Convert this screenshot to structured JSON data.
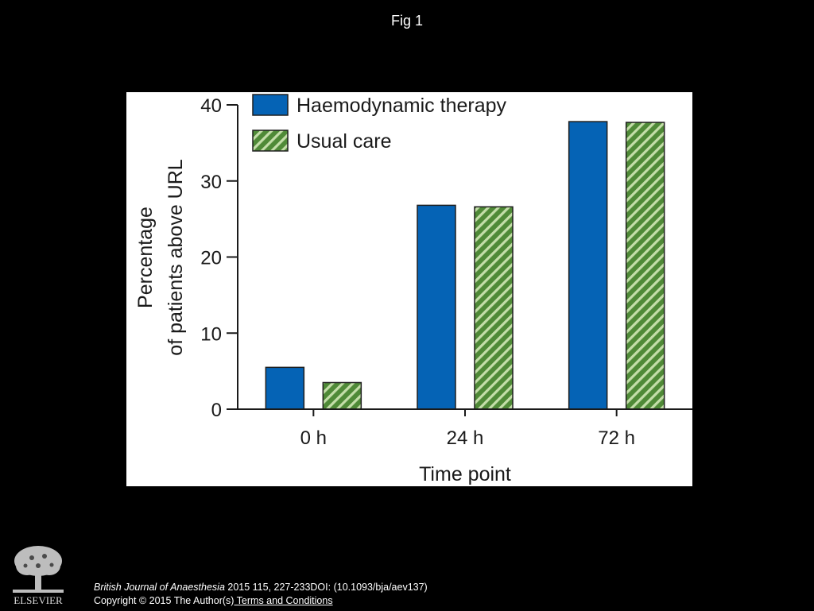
{
  "slide": {
    "title": "Fig 1"
  },
  "chart_data": {
    "type": "bar",
    "categories": [
      "0 h",
      "24 h",
      "72 h"
    ],
    "series": [
      {
        "name": "Haemodynamic therapy",
        "values": [
          5.5,
          26.8,
          37.8
        ],
        "color": "#0563b5",
        "pattern": "solid"
      },
      {
        "name": "Usual care",
        "values": [
          3.5,
          26.6,
          37.7
        ],
        "color": "#4f8a37",
        "pattern": "diagonal-hatch"
      }
    ],
    "xlabel": "Time point",
    "ylabel_lines": [
      "Percentage",
      "of patients above URL"
    ],
    "ylim": [
      0,
      40
    ],
    "yticks": [
      0,
      10,
      20,
      30,
      40
    ],
    "grid": false,
    "legend_position": "top-left"
  },
  "footer": {
    "journal": "British Journal of Anaesthesia",
    "citation_rest": " 2015 115, 227-233DOI: (10.1093/bja/aev137)",
    "copyright": "Copyright © 2015 The Author(s)",
    "terms_link": " Terms and Conditions",
    "publisher": "ELSEVIER"
  }
}
